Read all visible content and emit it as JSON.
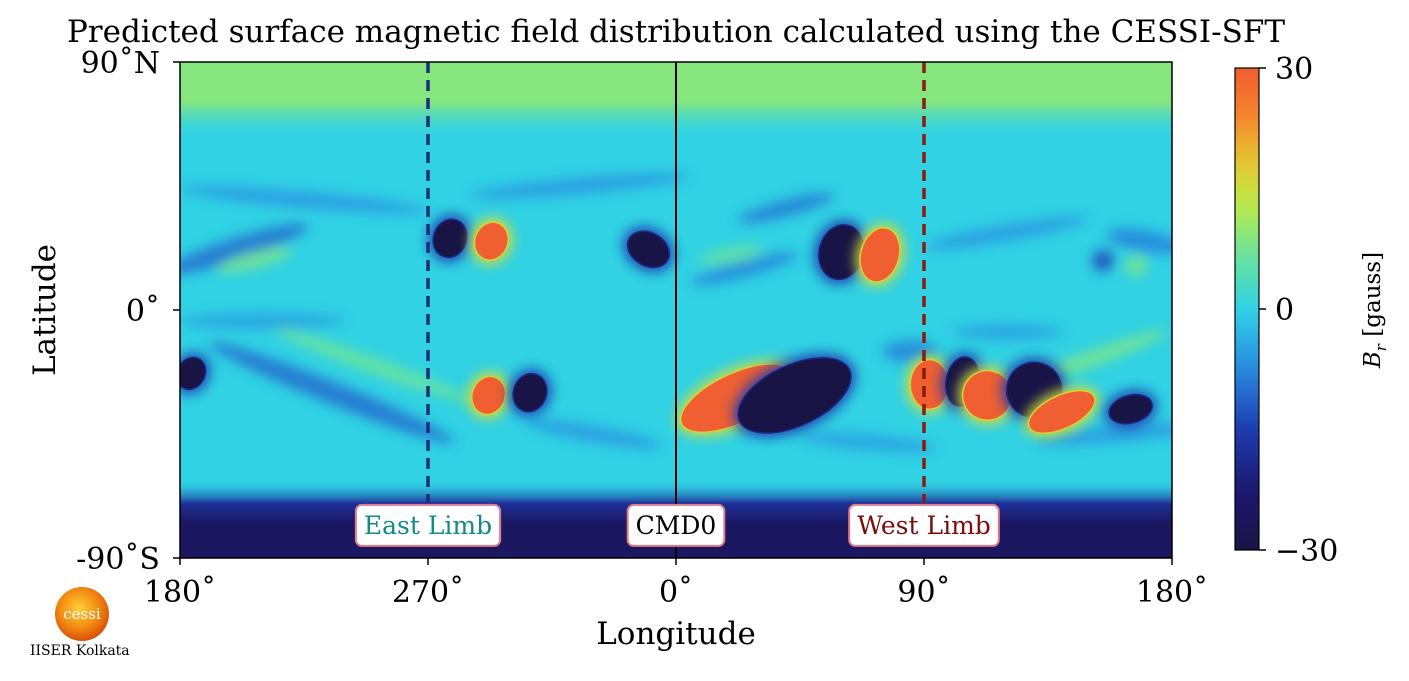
{
  "chart_data": {
    "type": "heatmap",
    "title": "Predicted surface magnetic field distribution calculated using the CESSI-SFT",
    "xlabel": "Longitude",
    "ylabel": "Latitude",
    "x_tick_labels": [
      "180˚",
      "270˚",
      "0˚",
      "90˚",
      "180˚"
    ],
    "y_tick_labels": [
      "90˚N",
      "0˚",
      "-90˚S"
    ],
    "xlim": [
      -180,
      180
    ],
    "ylim": [
      -90,
      90
    ],
    "colorbar": {
      "label": "B_r [gauss]",
      "range": [
        -30,
        30
      ],
      "tick_labels": [
        "30",
        "0",
        "−30"
      ],
      "colormap": "turbo"
    },
    "polar_caps": {
      "north": 9,
      "south": -25
    },
    "background_value": 0,
    "vertical_lines": [
      {
        "longitude": -90,
        "label": "East Limb",
        "style": "dashed",
        "color": "#1a2f7a",
        "label_color": "#128a85"
      },
      {
        "longitude": 0,
        "label": "CMD0",
        "style": "solid",
        "color": "#000000",
        "label_color": "#000000"
      },
      {
        "longitude": 90,
        "label": "West Limb",
        "style": "dashed",
        "color": "#8b1a10",
        "label_color": "#7a0c0c"
      }
    ],
    "flux_regions": [
      {
        "lon": -82,
        "lat": 26,
        "rx": 6,
        "ry": 7,
        "rot": 20,
        "value": -30
      },
      {
        "lon": -67,
        "lat": 25,
        "rx": 6,
        "ry": 7,
        "rot": 20,
        "value": 30
      },
      {
        "lon": -10,
        "lat": 22,
        "rx": 8,
        "ry": 6,
        "rot": 30,
        "value": -30
      },
      {
        "lon": 60,
        "lat": 21,
        "rx": 8,
        "ry": 10,
        "rot": 15,
        "value": -30
      },
      {
        "lon": 74,
        "lat": 20,
        "rx": 7,
        "ry": 10,
        "rot": 15,
        "value": 30
      },
      {
        "lon": -176,
        "lat": -23,
        "rx": 5,
        "ry": 6,
        "rot": 30,
        "value": -30
      },
      {
        "lon": -68,
        "lat": -31,
        "rx": 6,
        "ry": 7,
        "rot": 20,
        "value": 30
      },
      {
        "lon": -53,
        "lat": -30,
        "rx": 6,
        "ry": 7,
        "rot": 20,
        "value": -30
      },
      {
        "lon": 22,
        "lat": -32,
        "rx": 22,
        "ry": 9,
        "rot": -25,
        "value": 30
      },
      {
        "lon": 43,
        "lat": -31,
        "rx": 22,
        "ry": 11,
        "rot": -25,
        "value": -30
      },
      {
        "lon": 92,
        "lat": -27,
        "rx": 7,
        "ry": 9,
        "rot": 0,
        "value": 30
      },
      {
        "lon": 104,
        "lat": -26,
        "rx": 6,
        "ry": 9,
        "rot": 10,
        "value": -30
      },
      {
        "lon": 113,
        "lat": -31,
        "rx": 9,
        "ry": 9,
        "rot": -25,
        "value": 30
      },
      {
        "lon": 130,
        "lat": -29,
        "rx": 10,
        "ry": 10,
        "rot": -25,
        "value": -30
      },
      {
        "lon": 140,
        "lat": -37,
        "rx": 13,
        "ry": 6,
        "rot": -25,
        "value": 30
      },
      {
        "lon": 165,
        "lat": -36,
        "rx": 8,
        "ry": 5,
        "rot": -15,
        "value": -30
      }
    ],
    "diffuse_streaks": [
      {
        "lon": -160,
        "lat": 22,
        "rx": 28,
        "ry": 4,
        "rot": -18,
        "value": -10
      },
      {
        "lon": -153,
        "lat": 18,
        "rx": 14,
        "ry": 3,
        "rot": -15,
        "value": 8
      },
      {
        "lon": -135,
        "lat": 40,
        "rx": 45,
        "ry": 3,
        "rot": 5,
        "value": -6
      },
      {
        "lon": -125,
        "lat": -30,
        "rx": 48,
        "ry": 4,
        "rot": 22,
        "value": -10
      },
      {
        "lon": -110,
        "lat": -20,
        "rx": 38,
        "ry": 3,
        "rot": 20,
        "value": 7
      },
      {
        "lon": -150,
        "lat": -4,
        "rx": 30,
        "ry": 3,
        "rot": 0,
        "value": -5
      },
      {
        "lon": -35,
        "lat": 45,
        "rx": 40,
        "ry": 3,
        "rot": -5,
        "value": -6
      },
      {
        "lon": -30,
        "lat": -45,
        "rx": 25,
        "ry": 3,
        "rot": 10,
        "value": -6
      },
      {
        "lon": 25,
        "lat": 15,
        "rx": 20,
        "ry": 3,
        "rot": -15,
        "value": -8
      },
      {
        "lon": 20,
        "lat": 20,
        "rx": 12,
        "ry": 3,
        "rot": -10,
        "value": 6
      },
      {
        "lon": 40,
        "lat": 37,
        "rx": 18,
        "ry": 3,
        "rot": -15,
        "value": -9
      },
      {
        "lon": 120,
        "lat": 28,
        "rx": 30,
        "ry": 3,
        "rot": -10,
        "value": -6
      },
      {
        "lon": 155,
        "lat": 18,
        "rx": 4,
        "ry": 4,
        "rot": 0,
        "value": -14
      },
      {
        "lon": 167,
        "lat": 16,
        "rx": 4,
        "ry": 4,
        "rot": 0,
        "value": 8
      },
      {
        "lon": 170,
        "lat": 25,
        "rx": 14,
        "ry": 4,
        "rot": 10,
        "value": -8
      },
      {
        "lon": 150,
        "lat": -18,
        "rx": 30,
        "ry": 3,
        "rot": -20,
        "value": 8
      },
      {
        "lon": 160,
        "lat": -45,
        "rx": 30,
        "ry": 3,
        "rot": -5,
        "value": -6
      },
      {
        "lon": 70,
        "lat": -48,
        "rx": 25,
        "ry": 3,
        "rot": 5,
        "value": -5
      },
      {
        "lon": 120,
        "lat": -8,
        "rx": 20,
        "ry": 3,
        "rot": 0,
        "value": -5
      },
      {
        "lon": 85,
        "lat": -15,
        "rx": 10,
        "ry": 4,
        "rot": 0,
        "value": -8
      }
    ]
  },
  "logo": {
    "text": "cessi",
    "caption": "IISER Kolkata"
  }
}
